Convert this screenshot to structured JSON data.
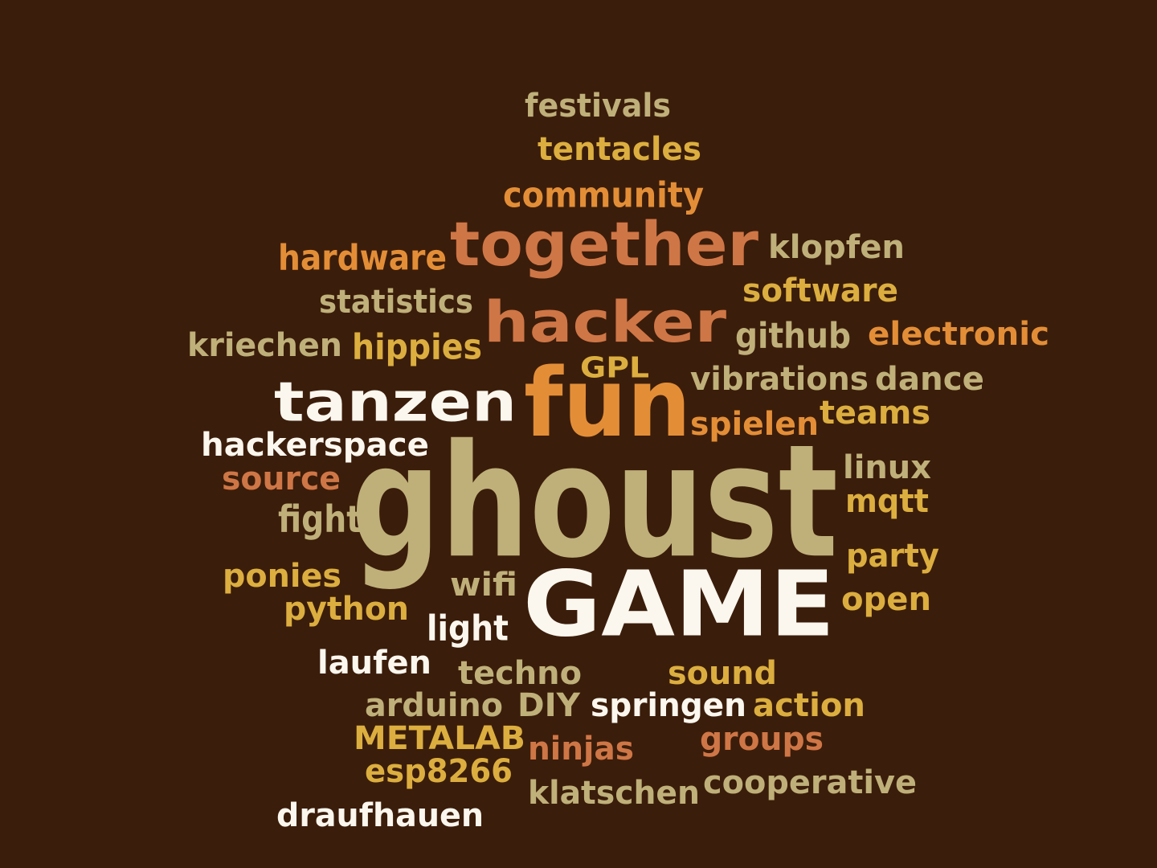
{
  "palette": {
    "background": "#3b1d0b",
    "khaki": "#bfb07a",
    "gold": "#dcae3f",
    "orange": "#e38e37",
    "terracotta": "#cf7646",
    "cream": "#fbf7ee"
  },
  "words": [
    {
      "text": "festivals",
      "color": "khaki"
    },
    {
      "text": "tentacles",
      "color": "gold"
    },
    {
      "text": "community",
      "color": "orange"
    },
    {
      "text": "hardware",
      "color": "orange"
    },
    {
      "text": "together",
      "color": "terracotta"
    },
    {
      "text": "klopfen",
      "color": "khaki"
    },
    {
      "text": "software",
      "color": "gold"
    },
    {
      "text": "statistics",
      "color": "khaki"
    },
    {
      "text": "hacker",
      "color": "terracotta"
    },
    {
      "text": "github",
      "color": "khaki"
    },
    {
      "text": "electronic",
      "color": "orange"
    },
    {
      "text": "kriechen",
      "color": "khaki"
    },
    {
      "text": "hippies",
      "color": "gold"
    },
    {
      "text": "GPL",
      "color": "gold"
    },
    {
      "text": "tanzen",
      "color": "cream"
    },
    {
      "text": "fun",
      "color": "orange"
    },
    {
      "text": "vibrations",
      "color": "khaki"
    },
    {
      "text": "dance",
      "color": "khaki"
    },
    {
      "text": "spielen",
      "color": "orange"
    },
    {
      "text": "teams",
      "color": "gold"
    },
    {
      "text": "hackerspace",
      "color": "cream"
    },
    {
      "text": "source",
      "color": "terracotta"
    },
    {
      "text": "ghoust",
      "color": "khaki"
    },
    {
      "text": "linux",
      "color": "khaki"
    },
    {
      "text": "mqtt",
      "color": "gold"
    },
    {
      "text": "fight",
      "color": "khaki"
    },
    {
      "text": "party",
      "color": "gold"
    },
    {
      "text": "ponies",
      "color": "gold"
    },
    {
      "text": "wifi",
      "color": "khaki"
    },
    {
      "text": "GAME",
      "color": "cream"
    },
    {
      "text": "open",
      "color": "gold"
    },
    {
      "text": "python",
      "color": "gold"
    },
    {
      "text": "light",
      "color": "cream"
    },
    {
      "text": "laufen",
      "color": "cream"
    },
    {
      "text": "techno",
      "color": "khaki"
    },
    {
      "text": "sound",
      "color": "gold"
    },
    {
      "text": "arduino",
      "color": "khaki"
    },
    {
      "text": "DIY",
      "color": "khaki"
    },
    {
      "text": "springen",
      "color": "cream"
    },
    {
      "text": "action",
      "color": "gold"
    },
    {
      "text": "METALAB",
      "color": "gold"
    },
    {
      "text": "ninjas",
      "color": "terracotta"
    },
    {
      "text": "groups",
      "color": "terracotta"
    },
    {
      "text": "esp8266",
      "color": "gold"
    },
    {
      "text": "klatschen",
      "color": "khaki"
    },
    {
      "text": "cooperative",
      "color": "khaki"
    },
    {
      "text": "draufhauen",
      "color": "cream"
    }
  ]
}
